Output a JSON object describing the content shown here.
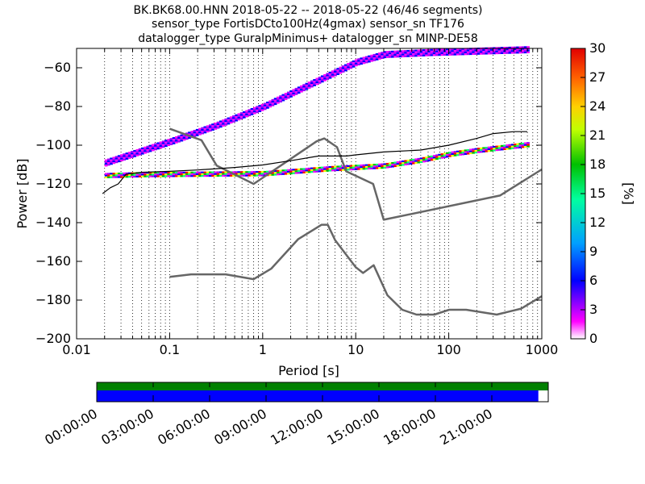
{
  "chart_data": [
    {
      "type": "heatmap",
      "title_lines": [
        "BK.BK68.00.HNN   2018-05-22 -- 2018-05-22  (46/46 segments)",
        "sensor_type FortisDCto100Hz(4gmax) sensor_sn TF176",
        "datalogger_type GuralpMinimus+ datalogger_sn MINP-DE58"
      ],
      "xlabel": "Period [s]",
      "ylabel": "Power [dB]",
      "x_scale": "log",
      "xlim": [
        0.01,
        1000
      ],
      "ylim": [
        -200,
        -50
      ],
      "x_ticks": [
        0.01,
        0.1,
        1,
        10,
        100,
        1000
      ],
      "x_tick_labels": [
        "0.01",
        "0.1",
        "1",
        "10",
        "100",
        "1000"
      ],
      "y_ticks": [
        -200,
        -180,
        -160,
        -140,
        -120,
        -100,
        -80,
        -60
      ],
      "y_tick_labels": [
        "−200",
        "−180",
        "−160",
        "−140",
        "−120",
        "−100",
        "−80",
        "−60"
      ],
      "grid": "vertical dotted",
      "colorbar": {
        "label": "[%]",
        "range": [
          0,
          30
        ],
        "ticks": [
          0,
          3,
          6,
          9,
          12,
          15,
          18,
          21,
          24,
          27,
          30
        ],
        "tick_labels": [
          "0",
          "3",
          "6",
          "9",
          "12",
          "15",
          "18",
          "21",
          "24",
          "27",
          "30"
        ]
      },
      "noise_models": {
        "high": [
          [
            0.1,
            -91.5
          ],
          [
            0.22,
            -97.4
          ],
          [
            0.32,
            -110.5
          ],
          [
            0.8,
            -120
          ],
          [
            3.8,
            -98
          ],
          [
            4.6,
            -96.5
          ],
          [
            6.3,
            -101
          ],
          [
            7.9,
            -113.5
          ],
          [
            15.4,
            -120
          ],
          [
            20,
            -138.5
          ],
          [
            354.8,
            -126
          ],
          [
            1000,
            -112.5
          ]
        ],
        "low": [
          [
            0.1,
            -168
          ],
          [
            0.17,
            -166.7
          ],
          [
            0.4,
            -166.7
          ],
          [
            0.8,
            -169.2
          ],
          [
            1.24,
            -163.7
          ],
          [
            2.4,
            -148.6
          ],
          [
            4.3,
            -141.1
          ],
          [
            5,
            -141.1
          ],
          [
            6,
            -149
          ],
          [
            10,
            -163
          ],
          [
            12,
            -166
          ],
          [
            15.6,
            -162
          ],
          [
            21.9,
            -177.5
          ],
          [
            31.6,
            -185
          ],
          [
            45,
            -187.5
          ],
          [
            70,
            -187.5
          ],
          [
            101,
            -185
          ],
          [
            154,
            -185
          ],
          [
            328,
            -187.5
          ],
          [
            600,
            -184.4
          ],
          [
            1000,
            -178
          ]
        ]
      },
      "median_curve": [
        [
          0.019,
          -125
        ],
        [
          0.023,
          -122
        ],
        [
          0.028,
          -120
        ],
        [
          0.034,
          -115
        ],
        [
          0.05,
          -114
        ],
        [
          0.1,
          -113.5
        ],
        [
          0.2,
          -112.8
        ],
        [
          0.5,
          -111.5
        ],
        [
          1,
          -110.2
        ],
        [
          2,
          -108
        ],
        [
          4,
          -105.6
        ],
        [
          8,
          -105.6
        ],
        [
          10,
          -105
        ],
        [
          20,
          -103.5
        ],
        [
          50,
          -102.5
        ],
        [
          100,
          -100
        ],
        [
          200,
          -96.5
        ],
        [
          300,
          -94
        ],
        [
          500,
          -93
        ],
        [
          700,
          -93
        ]
      ],
      "density_bands": [
        {
          "name": "upper",
          "points": [
            [
              0.02,
              -109
            ],
            [
              0.1,
              -98
            ],
            [
              0.3,
              -90
            ],
            [
              1,
              -80
            ],
            [
              3,
              -69
            ],
            [
              10,
              -57
            ],
            [
              20,
              -53
            ],
            [
              60,
              -52
            ],
            [
              700,
              -50.5
            ]
          ]
        },
        {
          "name": "lower",
          "points": [
            [
              0.02,
              -116
            ],
            [
              0.05,
              -115.5
            ],
            [
              1,
              -115
            ],
            [
              5,
              -112.5
            ],
            [
              20,
              -111
            ],
            [
              50,
              -108
            ],
            [
              100,
              -105
            ],
            [
              200,
              -103
            ],
            [
              700,
              -100
            ]
          ]
        }
      ]
    },
    {
      "type": "timeline",
      "tick_labels": [
        "00:00:00",
        "03:00:00",
        "06:00:00",
        "09:00:00",
        "12:00:00",
        "15:00:00",
        "18:00:00",
        "21:00:00"
      ],
      "coverage_fraction": 0.978,
      "colors": {
        "top_band": "#008000",
        "bottom_band": "#0000ff"
      }
    }
  ]
}
